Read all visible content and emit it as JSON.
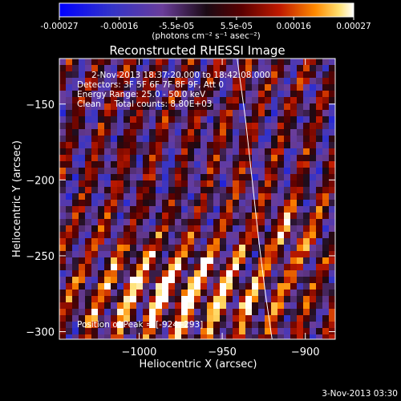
{
  "chart_data": {
    "type": "heatmap",
    "title": "Reconstructed RHESSI Image",
    "xlabel": "Heliocentric X (arcsec)",
    "ylabel": "Heliocentric Y (arcsec)",
    "xlim": [
      -1048,
      -882
    ],
    "ylim": [
      -305,
      -120
    ],
    "xticks": [
      -1000,
      -950,
      -900
    ],
    "xtick_labels": [
      "−1000",
      "−950",
      "−900"
    ],
    "yticks": [
      -300,
      -250,
      -200,
      -150
    ],
    "ytick_labels": [
      "−300",
      "−250",
      "−200",
      "−150"
    ],
    "colorbar": {
      "min": -0.00027,
      "max": 0.00027,
      "ticks": [
        -0.00027,
        -0.00016,
        -5.5e-05,
        5.5e-05,
        0.00016,
        0.00027
      ],
      "tick_labels": [
        "-0.00027",
        "-0.00016",
        "-5.5e-05",
        "5.5e-05",
        "0.00016",
        "0.00027"
      ],
      "label": "(photons cm⁻² s⁻¹ asec⁻²)",
      "colors": [
        "#0000ff",
        "#3b3bb0",
        "#6a3d9a",
        "#1a0a14",
        "#5a0000",
        "#c01a00",
        "#ff7a00",
        "#ffd040",
        "#ffffff"
      ]
    },
    "info_lines": [
      "2-Nov-2013 18:37:20.000 to 18:42:08.000",
      "Detectors: 3F 5F 6F 7F 8F 9F, Att 0",
      "Energy Range: 25.0 - 50.0 keV",
      "Clean     Total counts: 8.80E+03"
    ],
    "peak_label": "Position of Peak = [-924,-293]",
    "limb": [
      [
        -941,
        -120
      ],
      [
        -936,
        -160
      ],
      [
        -932,
        -200
      ],
      [
        -928,
        -240
      ],
      [
        -924,
        -275
      ],
      [
        -920,
        -305
      ]
    ]
  },
  "timestamp": "3-Nov-2013 03:30"
}
